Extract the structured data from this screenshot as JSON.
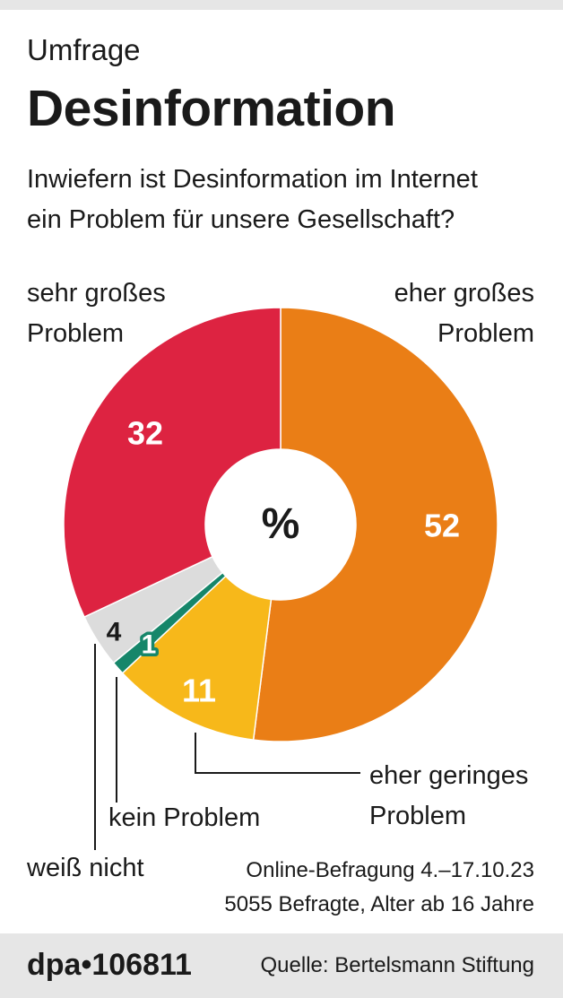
{
  "header": {
    "kicker": "Umfrage",
    "title": "Desinformation",
    "question_line1": "Inwiefern ist Desinformation im Internet",
    "question_line2": "ein Problem für unsere Gesellschaft?"
  },
  "chart_data": {
    "type": "pie",
    "title": "Desinformation",
    "subtitle": "Inwiefern ist Desinformation im Internet ein Problem für unsere Gesellschaft?",
    "unit": "%",
    "center_label": "%",
    "slices": [
      {
        "key": "eher_grosses",
        "label": "eher großes Problem",
        "value": 52,
        "color": "#ea7e16",
        "value_color": "#ffffff"
      },
      {
        "key": "eher_geringes",
        "label": "eher geringes Problem",
        "value": 11,
        "color": "#f7b81a",
        "value_color": "#ffffff"
      },
      {
        "key": "kein",
        "label": "kein Problem",
        "value": 1,
        "color": "#16866a",
        "value_color": "#ffffff"
      },
      {
        "key": "weiss_nicht",
        "label": "weiß nicht",
        "value": 4,
        "color": "#dcdcdc",
        "value_color": "#1a1a1a"
      },
      {
        "key": "sehr_grosses",
        "label": "sehr großes Problem",
        "value": 32,
        "color": "#dd2341",
        "value_color": "#ffffff"
      }
    ]
  },
  "labels": {
    "sehr_grosses_line1": "sehr großes",
    "sehr_grosses_line2": "Problem",
    "eher_grosses_line1": "eher großes",
    "eher_grosses_line2": "Problem",
    "eher_geringes_line1": "eher geringes",
    "eher_geringes_line2": "Problem",
    "kein": "kein Problem",
    "weiss_nicht": "weiß nicht"
  },
  "meta": {
    "line1": "Online-Befragung 4.–17.10.23",
    "line2": "5055 Befragte, Alter ab 16 Jahre"
  },
  "footer": {
    "logo": "dpa•106811",
    "source": "Quelle: Bertelsmann Stiftung"
  }
}
